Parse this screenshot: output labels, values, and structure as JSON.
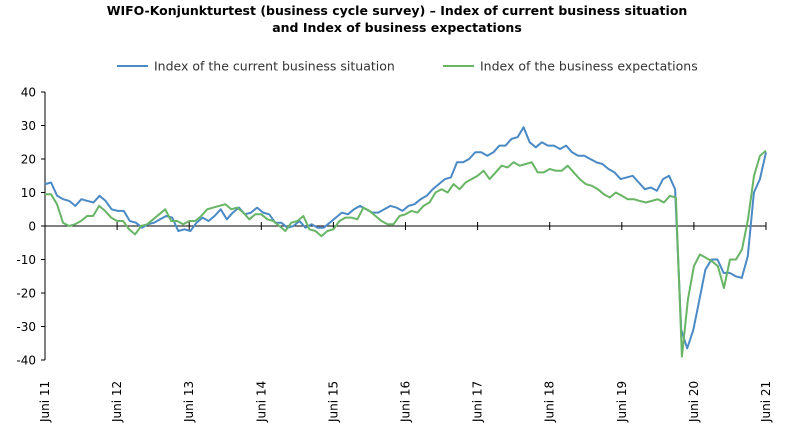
{
  "chart_data": {
    "type": "line",
    "title_line1": "WIFO-Konjunkturtest (business cycle survey) – Index of current business situation",
    "title_line2": "and Index of business expectations",
    "xlabel": "",
    "ylabel": "",
    "ylim": [
      -40,
      40
    ],
    "y_ticks": [
      -40,
      -30,
      -20,
      -10,
      0,
      10,
      20,
      30,
      40
    ],
    "x_tick_labels": [
      "Juni 11",
      "Juni 12",
      "Juni 13",
      "Juni 14",
      "Juni 15",
      "Juni 16",
      "Juni 17",
      "Juni 18",
      "Juni 19",
      "Juni 20",
      "Juni 21"
    ],
    "legend_position": "top",
    "gridlines": false,
    "series": [
      {
        "name": "Index of the current business situation",
        "color": "#4a8ac5",
        "values": [
          12.5,
          13,
          9,
          8,
          7.5,
          6,
          8,
          7.5,
          7,
          9,
          7.5,
          5,
          4.5,
          4.5,
          1.5,
          1,
          -0.5,
          0.5,
          1,
          2,
          3,
          2.5,
          -1.5,
          -1,
          -1.5,
          1,
          2.5,
          1.5,
          3,
          5,
          2,
          4,
          5.5,
          3.5,
          4,
          5.5,
          4,
          3.5,
          1,
          1,
          -0.5,
          0,
          1.5,
          -0.5,
          0.5,
          -0.5,
          -0.5,
          1,
          2.5,
          4,
          3.5,
          5,
          6,
          5,
          4,
          4,
          5,
          6,
          5.5,
          4.5,
          6,
          6.5,
          8,
          9,
          11,
          12.5,
          14,
          14.5,
          19,
          19,
          20,
          22,
          22,
          21,
          22,
          24,
          24,
          26,
          26.5,
          29.5,
          25,
          23.5,
          25,
          24,
          24,
          23,
          24,
          22,
          21,
          21,
          20,
          19,
          18.5,
          17,
          16,
          14,
          14.5,
          15,
          13,
          11,
          11.5,
          10.5,
          14,
          15,
          11,
          -31,
          -36.5,
          -31,
          -22,
          -13,
          -10,
          -10,
          -14,
          -14,
          -15,
          -15.5,
          -9,
          10,
          14,
          22
        ]
      },
      {
        "name": "Index of the business expectations",
        "color": "#67b565",
        "values": [
          9.5,
          9.5,
          6.5,
          1,
          0,
          0.5,
          1.5,
          3,
          3,
          6,
          4.5,
          2.5,
          1.5,
          1.5,
          -1,
          -2.5,
          0,
          0.5,
          2,
          3.5,
          5,
          1.5,
          1.5,
          0.5,
          1.5,
          1.5,
          3,
          5,
          5.5,
          6,
          6.5,
          5,
          5.5,
          4,
          2,
          3.5,
          3.5,
          2,
          1.5,
          0,
          -1.5,
          1,
          1.5,
          3,
          -1,
          -1.5,
          -3,
          -1.5,
          -1,
          1.5,
          2.5,
          2.5,
          2,
          5.5,
          4.5,
          3,
          1.5,
          0.5,
          0.5,
          3,
          3.5,
          4.5,
          4,
          6,
          7,
          10,
          11,
          10,
          12.5,
          11,
          13,
          14,
          15,
          16.5,
          14,
          16,
          18,
          17.5,
          19,
          18,
          18.5,
          19,
          16,
          16,
          17,
          16.5,
          16.5,
          18,
          16,
          14,
          12.5,
          12,
          11,
          9.5,
          8.5,
          10,
          9,
          8,
          8,
          7.5,
          7,
          7.5,
          8,
          7,
          9,
          8.5,
          -39,
          -22,
          -12,
          -8.5,
          -9.5,
          -10.5,
          -12,
          -18.5,
          -10,
          -10,
          -7,
          2,
          15,
          21,
          22.5
        ]
      }
    ]
  }
}
